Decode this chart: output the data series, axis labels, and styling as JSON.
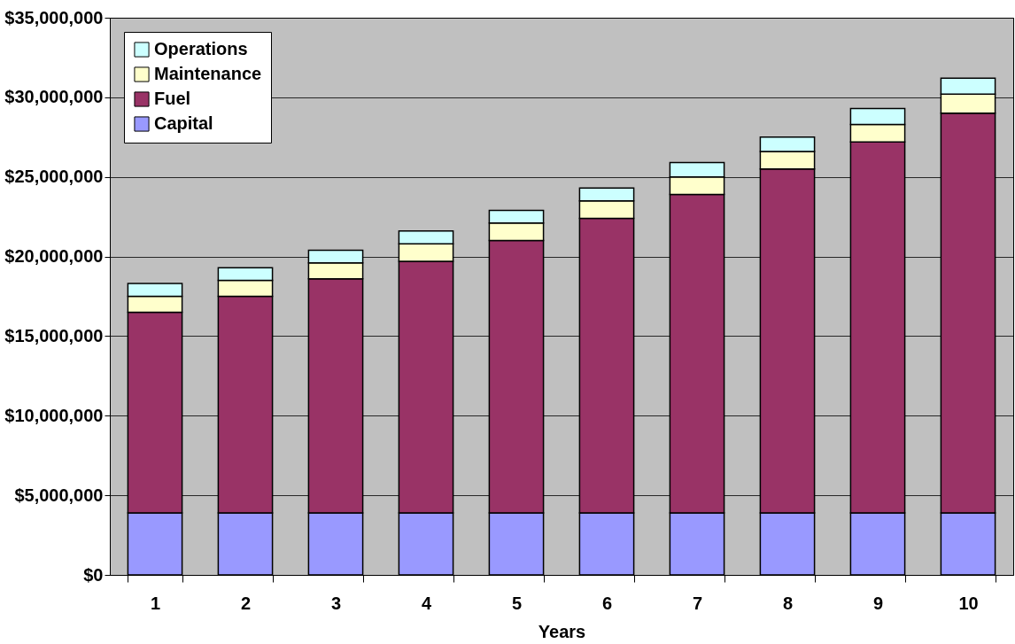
{
  "chart_data": {
    "type": "bar",
    "xlabel": "Years",
    "stacked": true,
    "legend": "top left",
    "grid": "y",
    "categories": [
      "1",
      "2",
      "3",
      "4",
      "5",
      "6",
      "7",
      "8",
      "9",
      "10"
    ],
    "series": [
      {
        "name": "Capital",
        "color": "#9999ff",
        "values": [
          3900000,
          3900000,
          3900000,
          3900000,
          3900000,
          3900000,
          3900000,
          3900000,
          3900000,
          3900000
        ]
      },
      {
        "name": "Fuel",
        "color": "#993366",
        "values": [
          12600000,
          13600000,
          14700000,
          15800000,
          17100000,
          18500000,
          20000000,
          21600000,
          23300000,
          25100000
        ]
      },
      {
        "name": "Maintenance",
        "color": "#ffffcc",
        "values": [
          1000000,
          1000000,
          1000000,
          1100000,
          1100000,
          1100000,
          1100000,
          1100000,
          1100000,
          1200000
        ]
      },
      {
        "name": "Operations",
        "color": "#ccffff",
        "values": [
          800000,
          800000,
          800000,
          800000,
          800000,
          800000,
          900000,
          900000,
          1000000,
          1000000
        ]
      }
    ],
    "ylim": [
      0,
      35000000
    ],
    "yticks": [
      {
        "value": 0,
        "label": "$0"
      },
      {
        "value": 5000000,
        "label": "$5,000,000"
      },
      {
        "value": 10000000,
        "label": "$10,000,000"
      },
      {
        "value": 15000000,
        "label": "$15,000,000"
      },
      {
        "value": 20000000,
        "label": "$20,000,000"
      },
      {
        "value": 25000000,
        "label": "$25,000,000"
      },
      {
        "value": 30000000,
        "label": "$30,000,000"
      },
      {
        "value": 35000000,
        "label": "$35,000,000"
      }
    ]
  }
}
